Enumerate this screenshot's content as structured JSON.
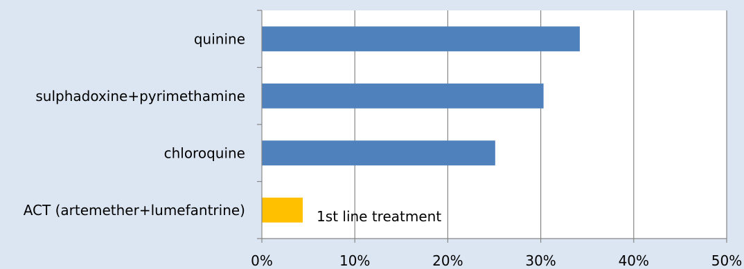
{
  "chart_data": {
    "type": "bar",
    "orientation": "horizontal",
    "categories": [
      "quinine ",
      "sulphadoxine+pyrimethamine ",
      "chloroquine ",
      "ACT (artemether+lumefantrine)"
    ],
    "values": [
      0.342,
      0.303,
      0.251,
      0.044
    ],
    "bar_colors": [
      "#4f81bd",
      "#4f81bd",
      "#4f81bd",
      "#ffc000"
    ],
    "x_ticks": [
      {
        "value": 0.0,
        "label": "0%"
      },
      {
        "value": 0.1,
        "label": "10%"
      },
      {
        "value": 0.2,
        "label": "20%"
      },
      {
        "value": 0.3,
        "label": "30%"
      },
      {
        "value": 0.4,
        "label": "40%"
      },
      {
        "value": 0.5,
        "label": "50%"
      }
    ],
    "xlim": [
      0,
      0.5
    ],
    "grid": "vertical",
    "title": "",
    "xlabel": "",
    "ylabel": "",
    "annotation": {
      "text": "1st line treatment",
      "category_index": 3
    },
    "colors": {
      "background": "#dce6f2",
      "plot_background": "#ffffff",
      "grid": "#868686",
      "axis": "#868686"
    }
  }
}
